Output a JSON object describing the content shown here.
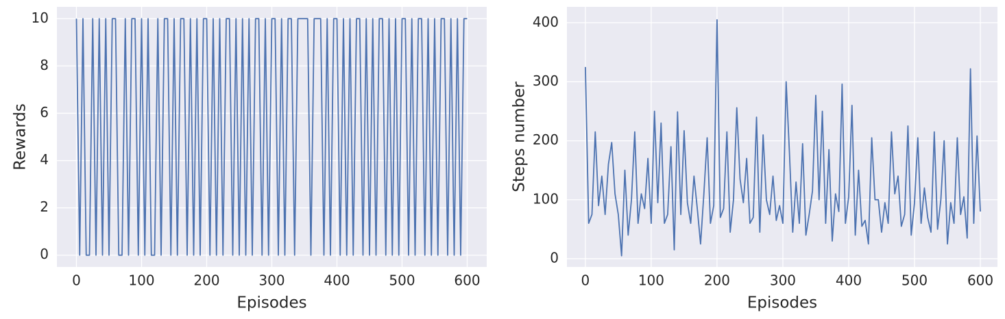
{
  "chart_data": [
    {
      "type": "line",
      "xlabel": "Episodes",
      "ylabel": "Rewards",
      "color": "#4c72b0",
      "grid": true,
      "xlim": [
        -30,
        630
      ],
      "ylim": [
        -0.5,
        10.5
      ],
      "xticks": [
        0,
        100,
        200,
        300,
        400,
        500,
        600
      ],
      "yticks": [
        0,
        2,
        4,
        6,
        8,
        10
      ],
      "x": [
        0,
        5,
        10,
        15,
        20,
        25,
        30,
        35,
        40,
        45,
        50,
        55,
        60,
        65,
        70,
        75,
        80,
        85,
        90,
        95,
        100,
        105,
        110,
        115,
        120,
        125,
        130,
        135,
        140,
        145,
        150,
        155,
        160,
        165,
        170,
        175,
        180,
        185,
        190,
        195,
        200,
        205,
        210,
        215,
        220,
        225,
        230,
        235,
        240,
        245,
        250,
        255,
        260,
        265,
        270,
        275,
        280,
        285,
        290,
        295,
        300,
        305,
        310,
        315,
        320,
        325,
        330,
        335,
        340,
        345,
        350,
        355,
        360,
        365,
        370,
        375,
        380,
        385,
        390,
        395,
        400,
        405,
        410,
        415,
        420,
        425,
        430,
        435,
        440,
        445,
        450,
        455,
        460,
        465,
        470,
        475,
        480,
        485,
        490,
        495,
        500,
        505,
        510,
        515,
        520,
        525,
        530,
        535,
        540,
        545,
        550,
        555,
        560,
        565,
        570,
        575,
        580,
        585,
        590,
        595,
        600
      ],
      "values": [
        10,
        0,
        10,
        0,
        0,
        10,
        0,
        10,
        0,
        10,
        0,
        10,
        10,
        0,
        0,
        10,
        0,
        10,
        10,
        0,
        10,
        0,
        10,
        0,
        0,
        10,
        0,
        10,
        10,
        0,
        10,
        0,
        10,
        10,
        0,
        10,
        0,
        10,
        0,
        10,
        10,
        0,
        10,
        0,
        10,
        0,
        10,
        10,
        0,
        10,
        0,
        10,
        0,
        10,
        0,
        10,
        10,
        0,
        10,
        0,
        10,
        10,
        0,
        10,
        0,
        10,
        10,
        0,
        10,
        10,
        10,
        10,
        0,
        10,
        10,
        10,
        0,
        10,
        0,
        10,
        10,
        0,
        10,
        0,
        10,
        0,
        10,
        10,
        0,
        10,
        0,
        10,
        0,
        10,
        10,
        0,
        10,
        0,
        10,
        0,
        10,
        10,
        0,
        10,
        0,
        10,
        10,
        0,
        10,
        0,
        10,
        0,
        10,
        10,
        0,
        10,
        0,
        10,
        0,
        10,
        10
      ]
    },
    {
      "type": "line",
      "xlabel": "Episodes",
      "ylabel": "Steps number",
      "color": "#4c72b0",
      "grid": true,
      "xlim": [
        -28,
        626
      ],
      "ylim": [
        -14,
        427
      ],
      "xticks": [
        0,
        100,
        200,
        300,
        400,
        500,
        600
      ],
      "yticks": [
        0,
        100,
        200,
        300,
        400
      ],
      "x": [
        0,
        5,
        10,
        15,
        20,
        25,
        30,
        35,
        40,
        45,
        50,
        55,
        60,
        65,
        70,
        75,
        80,
        85,
        90,
        95,
        100,
        105,
        110,
        115,
        120,
        125,
        130,
        135,
        140,
        145,
        150,
        155,
        160,
        165,
        170,
        175,
        180,
        185,
        190,
        195,
        200,
        205,
        210,
        215,
        220,
        225,
        230,
        235,
        240,
        245,
        250,
        255,
        260,
        265,
        270,
        275,
        280,
        285,
        290,
        295,
        300,
        305,
        310,
        315,
        320,
        325,
        330,
        335,
        340,
        345,
        350,
        355,
        360,
        365,
        370,
        375,
        380,
        385,
        390,
        395,
        400,
        405,
        410,
        415,
        420,
        425,
        430,
        435,
        440,
        445,
        450,
        455,
        460,
        465,
        470,
        475,
        480,
        485,
        490,
        495,
        500,
        505,
        510,
        515,
        520,
        525,
        530,
        535,
        540,
        545,
        550,
        555,
        560,
        565,
        570,
        575,
        580,
        585,
        590,
        595,
        600
      ],
      "values": [
        325,
        60,
        75,
        215,
        90,
        140,
        75,
        160,
        197,
        110,
        75,
        5,
        150,
        40,
        100,
        215,
        60,
        110,
        85,
        170,
        60,
        250,
        95,
        230,
        60,
        75,
        190,
        15,
        249,
        75,
        217,
        95,
        60,
        140,
        85,
        25,
        110,
        205,
        60,
        90,
        405,
        70,
        85,
        215,
        45,
        100,
        256,
        135,
        95,
        170,
        60,
        70,
        240,
        45,
        210,
        100,
        75,
        140,
        65,
        90,
        60,
        300,
        180,
        45,
        130,
        60,
        195,
        40,
        75,
        115,
        277,
        100,
        250,
        60,
        185,
        30,
        110,
        80,
        296,
        60,
        105,
        260,
        40,
        150,
        55,
        65,
        25,
        205,
        100,
        100,
        45,
        95,
        60,
        215,
        110,
        140,
        55,
        75,
        225,
        40,
        95,
        205,
        60,
        120,
        70,
        45,
        215,
        50,
        100,
        200,
        25,
        95,
        60,
        205,
        75,
        105,
        35,
        322,
        60,
        208,
        80
      ]
    }
  ]
}
